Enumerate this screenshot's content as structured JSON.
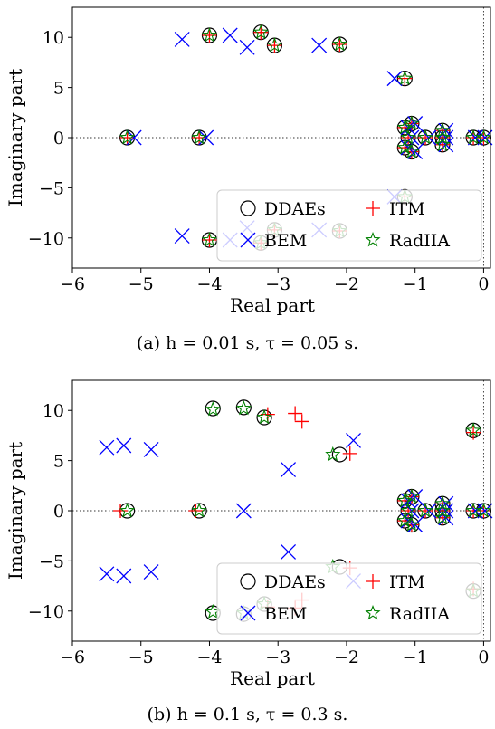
{
  "legend": [
    {
      "label": "DDAEs",
      "marker": "circle",
      "color": "#000000"
    },
    {
      "label": "ITM",
      "marker": "plus",
      "color": "#ff0000"
    },
    {
      "label": "BEM",
      "marker": "x",
      "color": "#0000ff"
    },
    {
      "label": "RadIIA",
      "marker": "star",
      "color": "#008000"
    }
  ],
  "captions": [
    "(a) h = 0.01 s, τ = 0.05 s.",
    "(b) h = 0.1 s, τ = 0.3 s."
  ],
  "chart_data": [
    {
      "type": "scatter",
      "title": "",
      "xlabel": "Real part",
      "ylabel": "Imaginary part",
      "xlim": [
        -6,
        0.1
      ],
      "ylim": [
        -13,
        13
      ],
      "xticks": [
        -6,
        -5,
        -4,
        -3,
        -2,
        -1,
        0
      ],
      "yticks": [
        10,
        5,
        0,
        -5,
        -10
      ],
      "xtick_labels": [
        "−6",
        "−5",
        "−4",
        "−3",
        "−2",
        "−1",
        "0"
      ],
      "ytick_labels": [
        "10",
        "5",
        "0",
        "−5",
        "−10"
      ],
      "legend_position": "lower-right",
      "series": [
        {
          "name": "DDAEs",
          "marker": "circle",
          "points": [
            [
              -5.2,
              0
            ],
            [
              -4.15,
              0
            ],
            [
              -4.0,
              10.2
            ],
            [
              -3.25,
              10.5
            ],
            [
              -3.05,
              9.2
            ],
            [
              -2.1,
              9.3
            ],
            [
              -1.15,
              5.9
            ],
            [
              -4.0,
              -10.2
            ],
            [
              -3.25,
              -10.5
            ],
            [
              -3.05,
              -9.2
            ],
            [
              -2.1,
              -9.3
            ],
            [
              -1.15,
              -5.9
            ],
            [
              -1.15,
              1.0
            ],
            [
              -1.15,
              -1.0
            ],
            [
              -1.05,
              1.4
            ],
            [
              -1.05,
              -1.4
            ],
            [
              -0.6,
              0.7
            ],
            [
              -0.6,
              -0.7
            ],
            [
              -0.6,
              0
            ],
            [
              -1.1,
              0
            ],
            [
              -0.85,
              0
            ],
            [
              -0.15,
              0
            ],
            [
              0,
              0
            ]
          ]
        },
        {
          "name": "ITM",
          "marker": "plus",
          "points": [
            [
              -5.2,
              0
            ],
            [
              -4.15,
              0
            ],
            [
              -4.0,
              10.2
            ],
            [
              -3.25,
              10.5
            ],
            [
              -3.05,
              9.2
            ],
            [
              -2.1,
              9.3
            ],
            [
              -1.15,
              5.9
            ],
            [
              -4.0,
              -10.2
            ],
            [
              -3.25,
              -10.5
            ],
            [
              -3.05,
              -9.2
            ],
            [
              -2.1,
              -9.3
            ],
            [
              -1.15,
              -5.9
            ],
            [
              -1.15,
              1.0
            ],
            [
              -1.15,
              -1.0
            ],
            [
              -1.05,
              1.4
            ],
            [
              -1.05,
              -1.4
            ],
            [
              -0.6,
              0.7
            ],
            [
              -0.6,
              -0.7
            ],
            [
              -0.6,
              0
            ],
            [
              -1.1,
              0
            ],
            [
              -0.85,
              0
            ],
            [
              -0.15,
              0
            ],
            [
              0,
              0
            ]
          ]
        },
        {
          "name": "BEM",
          "marker": "x",
          "points": [
            [
              -5.1,
              0
            ],
            [
              -4.05,
              0
            ],
            [
              -4.4,
              9.8
            ],
            [
              -3.7,
              10.2
            ],
            [
              -3.45,
              9.0
            ],
            [
              -2.4,
              9.2
            ],
            [
              -1.3,
              5.9
            ],
            [
              -4.4,
              -9.8
            ],
            [
              -3.7,
              -10.2
            ],
            [
              -3.45,
              -9.0
            ],
            [
              -2.4,
              -9.2
            ],
            [
              -1.3,
              -5.9
            ],
            [
              -1.1,
              1.0
            ],
            [
              -1.1,
              -1.0
            ],
            [
              -1.0,
              1.4
            ],
            [
              -1.0,
              -1.4
            ],
            [
              -0.55,
              0.7
            ],
            [
              -0.55,
              -0.7
            ],
            [
              -0.55,
              0
            ],
            [
              -1.05,
              0
            ],
            [
              -0.8,
              0
            ],
            [
              -0.12,
              0
            ],
            [
              0.02,
              0
            ]
          ]
        },
        {
          "name": "RadIIA",
          "marker": "star",
          "points": [
            [
              -5.2,
              0
            ],
            [
              -4.15,
              0
            ],
            [
              -4.0,
              10.2
            ],
            [
              -3.25,
              10.5
            ],
            [
              -3.05,
              9.2
            ],
            [
              -2.1,
              9.3
            ],
            [
              -1.15,
              5.9
            ],
            [
              -4.0,
              -10.2
            ],
            [
              -3.25,
              -10.5
            ],
            [
              -3.05,
              -9.2
            ],
            [
              -2.1,
              -9.3
            ],
            [
              -1.15,
              -5.9
            ],
            [
              -1.15,
              1.0
            ],
            [
              -1.15,
              -1.0
            ],
            [
              -1.05,
              1.4
            ],
            [
              -1.05,
              -1.4
            ],
            [
              -0.6,
              0.7
            ],
            [
              -0.6,
              -0.7
            ],
            [
              -0.6,
              0
            ],
            [
              -1.1,
              0
            ],
            [
              -0.85,
              0
            ],
            [
              -0.15,
              0
            ],
            [
              0,
              0
            ]
          ]
        }
      ]
    },
    {
      "type": "scatter",
      "title": "",
      "xlabel": "Real part",
      "ylabel": "Imaginary part",
      "xlim": [
        -6,
        0.1
      ],
      "ylim": [
        -13,
        13
      ],
      "xticks": [
        -6,
        -5,
        -4,
        -3,
        -2,
        -1,
        0
      ],
      "yticks": [
        10,
        5,
        0,
        -5,
        -10
      ],
      "xtick_labels": [
        "−6",
        "−5",
        "−4",
        "−3",
        "−2",
        "−1",
        "0"
      ],
      "ytick_labels": [
        "10",
        "5",
        "0",
        "−5",
        "−10"
      ],
      "legend_position": "lower-right",
      "series": [
        {
          "name": "DDAEs",
          "marker": "circle",
          "points": [
            [
              -5.2,
              0
            ],
            [
              -4.15,
              0
            ],
            [
              -3.95,
              10.2
            ],
            [
              -3.5,
              10.3
            ],
            [
              -3.2,
              9.3
            ],
            [
              -2.1,
              5.6
            ],
            [
              -3.95,
              -10.2
            ],
            [
              -3.5,
              -10.3
            ],
            [
              -3.2,
              -9.3
            ],
            [
              -2.1,
              -5.6
            ],
            [
              -0.15,
              8.0
            ],
            [
              -0.15,
              -8.0
            ],
            [
              -1.15,
              1.0
            ],
            [
              -1.15,
              -1.0
            ],
            [
              -1.05,
              1.4
            ],
            [
              -1.05,
              -1.4
            ],
            [
              -0.6,
              0.7
            ],
            [
              -0.6,
              -0.7
            ],
            [
              -0.6,
              0
            ],
            [
              -1.1,
              0
            ],
            [
              -0.85,
              0
            ],
            [
              -0.15,
              0
            ],
            [
              0,
              0
            ]
          ]
        },
        {
          "name": "ITM",
          "marker": "plus",
          "points": [
            [
              -5.3,
              0
            ],
            [
              -4.2,
              0
            ],
            [
              -3.15,
              9.6
            ],
            [
              -2.75,
              9.7
            ],
            [
              -2.65,
              8.9
            ],
            [
              -1.95,
              5.7
            ],
            [
              -3.15,
              -9.6
            ],
            [
              -2.75,
              -9.7
            ],
            [
              -2.65,
              -8.9
            ],
            [
              -1.95,
              -5.7
            ],
            [
              -0.15,
              7.8
            ],
            [
              -0.15,
              -7.8
            ],
            [
              -1.15,
              1.0
            ],
            [
              -1.15,
              -1.0
            ],
            [
              -1.05,
              1.4
            ],
            [
              -1.05,
              -1.4
            ],
            [
              -0.6,
              0.7
            ],
            [
              -0.6,
              -0.7
            ],
            [
              -0.6,
              0
            ],
            [
              -1.1,
              0
            ],
            [
              -0.85,
              0
            ],
            [
              -0.15,
              0
            ],
            [
              0,
              0
            ]
          ]
        },
        {
          "name": "BEM",
          "marker": "x",
          "points": [
            [
              -5.5,
              6.3
            ],
            [
              -5.25,
              6.5
            ],
            [
              -4.85,
              6.1
            ],
            [
              -3.5,
              0
            ],
            [
              -2.85,
              4.1
            ],
            [
              -1.9,
              7.0
            ],
            [
              -5.5,
              -6.3
            ],
            [
              -5.25,
              -6.5
            ],
            [
              -4.85,
              -6.1
            ],
            [
              -2.85,
              -4.1
            ],
            [
              -1.9,
              -7.0
            ],
            [
              -1.1,
              1.0
            ],
            [
              -1.1,
              -1.0
            ],
            [
              -1.0,
              1.4
            ],
            [
              -1.0,
              -1.4
            ],
            [
              -0.55,
              0.7
            ],
            [
              -0.55,
              -0.7
            ],
            [
              -0.55,
              0
            ],
            [
              -1.05,
              0
            ],
            [
              -0.8,
              0
            ],
            [
              -0.12,
              0
            ],
            [
              0.02,
              0
            ]
          ]
        },
        {
          "name": "RadIIA",
          "marker": "star",
          "points": [
            [
              -5.2,
              0
            ],
            [
              -4.15,
              0
            ],
            [
              -3.95,
              10.1
            ],
            [
              -3.5,
              10.2
            ],
            [
              -3.2,
              9.3
            ],
            [
              -2.2,
              5.6
            ],
            [
              -3.95,
              -10.1
            ],
            [
              -3.5,
              -10.2
            ],
            [
              -3.2,
              -9.3
            ],
            [
              -2.2,
              -5.6
            ],
            [
              -0.15,
              8.0
            ],
            [
              -0.15,
              -8.0
            ],
            [
              -1.15,
              1.0
            ],
            [
              -1.15,
              -1.0
            ],
            [
              -1.05,
              1.4
            ],
            [
              -1.05,
              -1.4
            ],
            [
              -0.6,
              0.7
            ],
            [
              -0.6,
              -0.7
            ],
            [
              -0.6,
              0
            ],
            [
              -1.1,
              0
            ],
            [
              -0.85,
              0
            ],
            [
              -0.15,
              0
            ],
            [
              0,
              0
            ]
          ]
        }
      ]
    }
  ]
}
